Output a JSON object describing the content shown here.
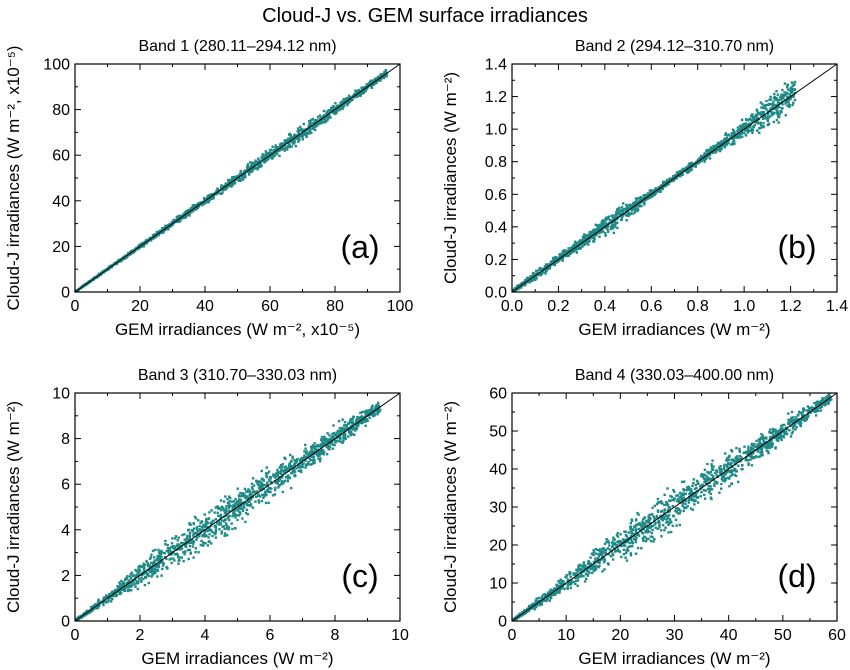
{
  "figure": {
    "title": "Cloud-J vs. GEM surface irradiances"
  },
  "colors": {
    "points": "#1e8a87",
    "one_to_one_line": "#000000"
  },
  "chart_data": [
    {
      "type": "scatter",
      "title": "Band 1 (280.11–294.12 nm)",
      "panel_label": "(a)",
      "xlabel": "GEM irradiances (W m⁻², x10⁻⁵)",
      "ylabel": "Cloud-J irradiances (W m⁻², x10⁻⁵)",
      "xlim": [
        0,
        100
      ],
      "ylim": [
        0,
        100
      ],
      "xticks": [
        0,
        20,
        40,
        60,
        80,
        100
      ],
      "yticks": [
        0,
        20,
        40,
        60,
        80,
        100
      ],
      "reference_line": "1:1",
      "point_cloud": {
        "x_max": 96,
        "spread": [
          [
            0,
            0.3
          ],
          [
            20,
            1.2
          ],
          [
            40,
            2.2
          ],
          [
            60,
            3.8
          ],
          [
            70,
            4.5
          ],
          [
            80,
            3.2
          ],
          [
            96,
            2.0
          ]
        ],
        "upper_bias": 0.5
      }
    },
    {
      "type": "scatter",
      "title": "Band 2 (294.12–310.70 nm)",
      "panel_label": "(b)",
      "xlabel": "GEM irradiances (W m⁻²)",
      "ylabel": "Cloud-J irradiances (W m⁻²)",
      "xlim": [
        0,
        1.4
      ],
      "ylim": [
        0,
        1.4
      ],
      "xticks": [
        0.0,
        0.2,
        0.4,
        0.6,
        0.8,
        1.0,
        1.2,
        1.4
      ],
      "yticks": [
        0.0,
        0.2,
        0.4,
        0.6,
        0.8,
        1.0,
        1.2,
        1.4
      ],
      "reference_line": "1:1",
      "point_cloud": {
        "x_max": 1.22,
        "spread": [
          [
            0,
            0.01
          ],
          [
            0.1,
            0.04
          ],
          [
            0.3,
            0.05
          ],
          [
            0.45,
            0.09
          ],
          [
            0.6,
            0.03
          ],
          [
            0.8,
            0.03
          ],
          [
            1.0,
            0.08
          ],
          [
            1.15,
            0.15
          ],
          [
            1.22,
            0.12
          ]
        ],
        "upper_bias": 0.62
      }
    },
    {
      "type": "scatter",
      "title": "Band 3 (310.70–330.03 nm)",
      "panel_label": "(c)",
      "xlabel": "GEM irradiances (W m⁻²)",
      "ylabel": "Cloud-J irradiances (W m⁻²)",
      "xlim": [
        0,
        10
      ],
      "ylim": [
        0,
        10
      ],
      "xticks": [
        0,
        2,
        4,
        6,
        8,
        10
      ],
      "yticks": [
        0,
        2,
        4,
        6,
        8,
        10
      ],
      "reference_line": "1:1",
      "point_cloud": {
        "x_max": 9.4,
        "spread": [
          [
            0,
            0.05
          ],
          [
            1,
            0.3
          ],
          [
            2.5,
            0.9
          ],
          [
            4,
            1.1
          ],
          [
            6,
            1.0
          ],
          [
            8,
            0.7
          ],
          [
            9.4,
            0.4
          ]
        ],
        "upper_bias": 0.55
      }
    },
    {
      "type": "scatter",
      "title": "Band 4 (330.03–400.00 nm)",
      "panel_label": "(d)",
      "xlabel": "GEM irradiances (W m⁻²)",
      "ylabel": "Cloud-J irradiances (W m⁻²)",
      "xlim": [
        0,
        60
      ],
      "ylim": [
        0,
        60
      ],
      "xticks": [
        0,
        10,
        20,
        30,
        40,
        50,
        60
      ],
      "yticks": [
        0,
        10,
        20,
        30,
        40,
        50,
        60
      ],
      "reference_line": "1:1",
      "point_cloud": {
        "x_max": 59,
        "spread": [
          [
            0,
            0.3
          ],
          [
            10,
            3
          ],
          [
            20,
            6
          ],
          [
            30,
            7
          ],
          [
            40,
            6
          ],
          [
            50,
            4
          ],
          [
            59,
            2
          ]
        ],
        "upper_bias": 0.55
      }
    }
  ]
}
